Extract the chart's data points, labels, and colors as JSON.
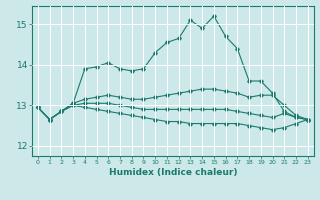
{
  "xlabel": "Humidex (Indice chaleur)",
  "ylabel": "",
  "xlim": [
    -0.5,
    23.5
  ],
  "ylim": [
    11.75,
    15.45
  ],
  "yticks": [
    12,
    13,
    14,
    15
  ],
  "xticks": [
    0,
    1,
    2,
    3,
    4,
    5,
    6,
    7,
    8,
    9,
    10,
    11,
    12,
    13,
    14,
    15,
    16,
    17,
    18,
    19,
    20,
    21,
    22,
    23
  ],
  "bg_color": "#cce8e8",
  "line_color": "#1a7a6e",
  "grid_color": "#ffffff",
  "lines": {
    "line1": [
      12.95,
      12.65,
      12.85,
      13.05,
      13.9,
      13.95,
      14.05,
      13.9,
      13.85,
      13.9,
      14.3,
      14.55,
      14.65,
      15.1,
      14.9,
      15.2,
      14.7,
      14.4,
      13.6,
      13.6,
      13.3,
      12.85,
      12.7,
      12.65
    ],
    "line2": [
      12.95,
      12.65,
      12.85,
      13.05,
      13.15,
      13.2,
      13.25,
      13.2,
      13.15,
      13.15,
      13.2,
      13.25,
      13.3,
      13.35,
      13.4,
      13.4,
      13.35,
      13.3,
      13.2,
      13.25,
      13.25,
      13.0,
      12.75,
      12.65
    ],
    "line3": [
      12.95,
      12.65,
      12.85,
      13.0,
      13.05,
      13.05,
      13.05,
      13.0,
      12.95,
      12.9,
      12.9,
      12.9,
      12.9,
      12.9,
      12.9,
      12.9,
      12.9,
      12.85,
      12.8,
      12.75,
      12.7,
      12.8,
      12.7,
      12.65
    ],
    "line4": [
      12.95,
      12.65,
      12.85,
      13.0,
      12.95,
      12.9,
      12.85,
      12.8,
      12.75,
      12.7,
      12.65,
      12.6,
      12.6,
      12.55,
      12.55,
      12.55,
      12.55,
      12.55,
      12.5,
      12.45,
      12.4,
      12.45,
      12.55,
      12.65
    ]
  }
}
